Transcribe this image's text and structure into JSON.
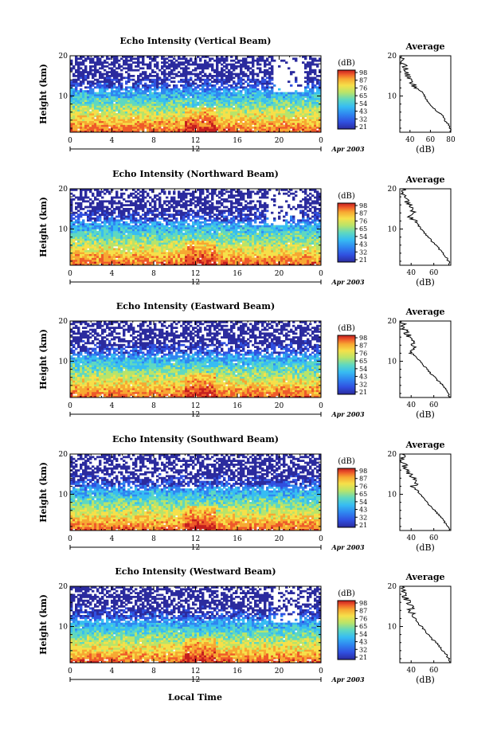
{
  "figure": {
    "xlabel": "Local Time",
    "date_label": "Apr 2003",
    "avg_title": "Average",
    "avg_xlabel": "(dB)",
    "colorbar_unit": "(dB)",
    "ylabel": "Height (km)"
  },
  "colors": {
    "scale": [
      "#2b2b9e",
      "#3050e0",
      "#2f86f0",
      "#37bdf2",
      "#5fd8c0",
      "#b8e46a",
      "#f6e04a",
      "#f7a832",
      "#ee5a2a",
      "#c41e1e"
    ]
  },
  "chart_data": [
    {
      "type": "heatmap",
      "title": "Echo Intensity (Vertical Beam)",
      "xlabel": "",
      "ylabel": "Height (km)",
      "x_ticks": [
        "0",
        "4",
        "8",
        "12",
        "16",
        "20",
        "0"
      ],
      "x_sub_label": "12",
      "xlim": [
        0,
        24
      ],
      "ylim": [
        1,
        20
      ],
      "y_ticks": [
        "10",
        "20"
      ],
      "colorbar": {
        "unit": "(dB)",
        "ticks": [
          "98",
          "87",
          "76",
          "65",
          "54",
          "43",
          "32",
          "21"
        ],
        "range": [
          21,
          98
        ]
      },
      "profile": {
        "title": "Average",
        "xlabel": "(dB)",
        "x_ticks": [
          "40",
          "60",
          "80"
        ],
        "xlim": [
          30,
          80
        ],
        "ylim": [
          1,
          20
        ],
        "height_km": [
          1,
          2,
          3,
          4,
          5,
          6,
          7,
          8,
          9,
          10,
          11,
          12,
          13,
          14,
          15,
          16,
          17,
          18,
          19,
          20
        ],
        "mean_db": [
          80,
          79,
          78,
          74,
          72,
          68,
          63,
          60,
          56,
          54,
          52,
          47,
          42,
          40,
          38,
          37,
          35,
          34,
          33,
          32
        ]
      }
    },
    {
      "type": "heatmap",
      "title": "Echo Intensity (Northward Beam)",
      "xlabel": "",
      "ylabel": "Height (km)",
      "x_ticks": [
        "0",
        "4",
        "8",
        "12",
        "16",
        "20",
        "0"
      ],
      "x_sub_label": "12",
      "xlim": [
        0,
        24
      ],
      "ylim": [
        1,
        20
      ],
      "y_ticks": [
        "10",
        "20"
      ],
      "colorbar": {
        "unit": "(dB)",
        "ticks": [
          "98",
          "87",
          "76",
          "65",
          "54",
          "43",
          "32",
          "21"
        ],
        "range": [
          21,
          98
        ]
      },
      "profile": {
        "title": "Average",
        "xlabel": "(dB)",
        "x_ticks": [
          "40",
          "60"
        ],
        "xlim": [
          30,
          75
        ],
        "ylim": [
          1,
          20
        ],
        "height_km": [
          1,
          2,
          3,
          4,
          5,
          6,
          7,
          8,
          9,
          10,
          11,
          12,
          13,
          14,
          15,
          16,
          17,
          18,
          19,
          20
        ],
        "mean_db": [
          74,
          73,
          71,
          68,
          65,
          62,
          58,
          55,
          52,
          49,
          46,
          43,
          40,
          44,
          41,
          38,
          36,
          34,
          33,
          32
        ]
      }
    },
    {
      "type": "heatmap",
      "title": "Echo Intensity (Eastward Beam)",
      "xlabel": "",
      "ylabel": "Height (km)",
      "x_ticks": [
        "0",
        "4",
        "8",
        "12",
        "16",
        "20",
        "0"
      ],
      "x_sub_label": "12",
      "xlim": [
        0,
        24
      ],
      "ylim": [
        1,
        20
      ],
      "y_ticks": [
        "10",
        "20"
      ],
      "colorbar": {
        "unit": "(dB)",
        "ticks": [
          "98",
          "87",
          "76",
          "65",
          "54",
          "43",
          "32",
          "21"
        ],
        "range": [
          21,
          98
        ]
      },
      "profile": {
        "title": "Average",
        "xlabel": "(dB)",
        "x_ticks": [
          "40",
          "60"
        ],
        "xlim": [
          30,
          75
        ],
        "ylim": [
          1,
          20
        ],
        "height_km": [
          1,
          2,
          3,
          4,
          5,
          6,
          7,
          8,
          9,
          10,
          11,
          12,
          13,
          14,
          15,
          16,
          17,
          18,
          19,
          20
        ],
        "mean_db": [
          74,
          73,
          71,
          68,
          64,
          61,
          57,
          54,
          51,
          48,
          44,
          41,
          43,
          39,
          42,
          38,
          36,
          34,
          33,
          32
        ]
      }
    },
    {
      "type": "heatmap",
      "title": "Echo Intensity (Southward Beam)",
      "xlabel": "",
      "ylabel": "Height (km)",
      "x_ticks": [
        "0",
        "4",
        "8",
        "12",
        "16",
        "20",
        "0"
      ],
      "x_sub_label": "12",
      "xlim": [
        0,
        24
      ],
      "ylim": [
        1,
        20
      ],
      "y_ticks": [
        "10",
        "20"
      ],
      "colorbar": {
        "unit": "(dB)",
        "ticks": [
          "98",
          "87",
          "76",
          "65",
          "54",
          "43",
          "32",
          "21"
        ],
        "range": [
          21,
          98
        ]
      },
      "profile": {
        "title": "Average",
        "xlabel": "(dB)",
        "x_ticks": [
          "40",
          "60"
        ],
        "xlim": [
          30,
          75
        ],
        "ylim": [
          1,
          20
        ],
        "height_km": [
          1,
          2,
          3,
          4,
          5,
          6,
          7,
          8,
          9,
          10,
          11,
          12,
          13,
          14,
          15,
          16,
          17,
          18,
          19,
          20
        ],
        "mean_db": [
          74,
          72,
          70,
          67,
          64,
          61,
          57,
          54,
          51,
          48,
          45,
          42,
          47,
          42,
          38,
          36,
          35,
          34,
          33,
          32
        ]
      }
    },
    {
      "type": "heatmap",
      "title": "Echo Intensity (Westward Beam)",
      "xlabel": "Local Time",
      "ylabel": "Height (km)",
      "x_ticks": [
        "0",
        "4",
        "8",
        "12",
        "16",
        "20",
        "0"
      ],
      "x_sub_label": "12",
      "xlim": [
        0,
        24
      ],
      "ylim": [
        1,
        20
      ],
      "y_ticks": [
        "10",
        "20"
      ],
      "colorbar": {
        "unit": "(dB)",
        "ticks": [
          "98",
          "87",
          "76",
          "65",
          "54",
          "43",
          "32",
          "21"
        ],
        "range": [
          21,
          98
        ]
      },
      "profile": {
        "title": "Average",
        "xlabel": "(dB)",
        "x_ticks": [
          "40",
          "60"
        ],
        "xlim": [
          30,
          75
        ],
        "ylim": [
          1,
          20
        ],
        "height_km": [
          1,
          2,
          3,
          4,
          5,
          6,
          7,
          8,
          9,
          10,
          11,
          12,
          13,
          14,
          15,
          16,
          17,
          18,
          19,
          20
        ],
        "mean_db": [
          74,
          73,
          71,
          68,
          65,
          62,
          58,
          55,
          52,
          49,
          46,
          43,
          41,
          39,
          42,
          38,
          36,
          34,
          33,
          32
        ]
      }
    }
  ]
}
